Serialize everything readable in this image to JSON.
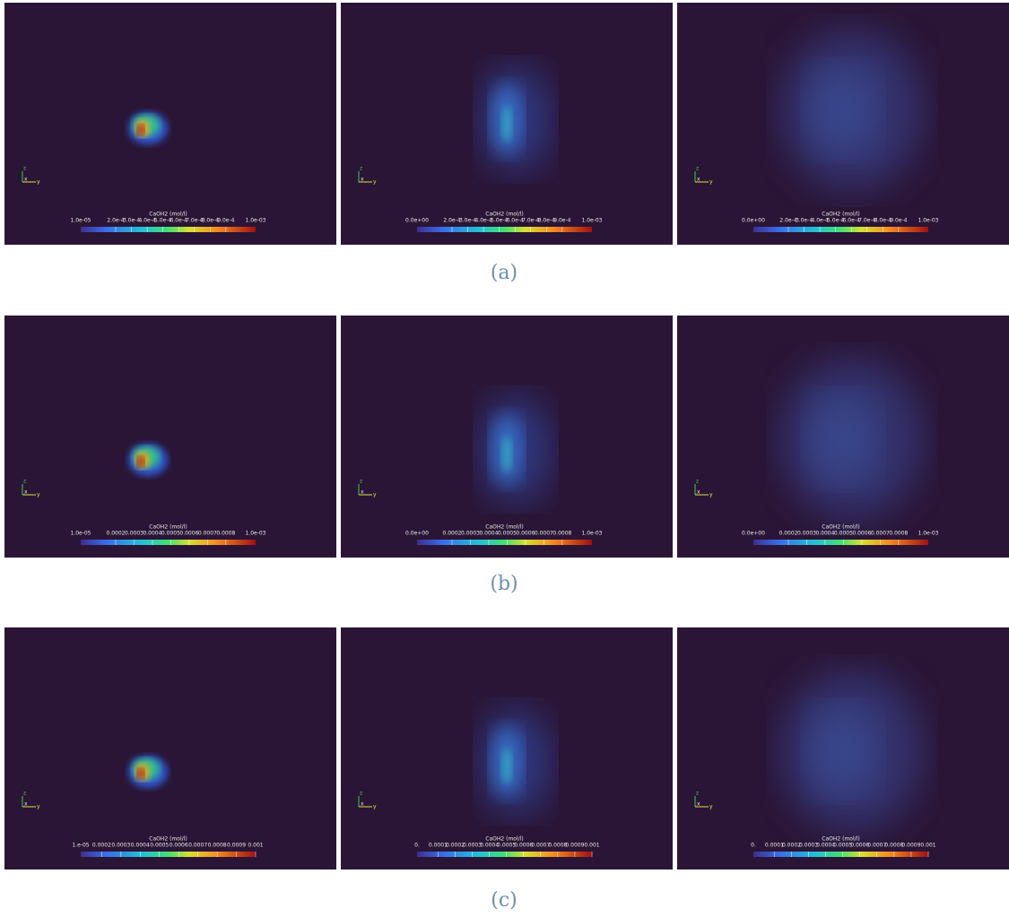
{
  "rows": [
    {
      "caption": "(a)",
      "panels": [
        {
          "colorbar_title": "CaOH2 (mol/l)",
          "min_label": "1.0e-05",
          "tick_labels": [
            "2.0e-4",
            "3.0e-4",
            "4.0e-4",
            "5.0e-4",
            "6.0e-4",
            "7.0e-4",
            "8.0e-4",
            "9.0e-4"
          ],
          "max_label": "1.0e-03",
          "axes": [
            "z",
            "x",
            "y"
          ]
        },
        {
          "colorbar_title": "CaOH2 (mol/l)",
          "min_label": "0.0e+00",
          "tick_labels": [
            "2.0e-4",
            "3.0e-4",
            "4.0e-4",
            "5.0e-4",
            "6.0e-4",
            "7.0e-4",
            "8.0e-4",
            "9.0e-4"
          ],
          "max_label": "1.0e-03",
          "axes": [
            "z",
            "x",
            "y"
          ]
        },
        {
          "colorbar_title": "CaOH2 (mol/l)",
          "min_label": "0.0e+00",
          "tick_labels": [
            "2.0e-4",
            "3.0e-4",
            "4.0e-4",
            "5.0e-4",
            "6.0e-4",
            "7.0e-4",
            "8.0e-4",
            "9.0e-4"
          ],
          "max_label": "1.0e-03",
          "axes": [
            "z",
            "x",
            "y"
          ]
        }
      ]
    },
    {
      "caption": "(b)",
      "panels": [
        {
          "colorbar_title": "CaOH2 (mol/l)",
          "min_label": "1.0e-05",
          "tick_labels": [
            "0.0002",
            "0.0003",
            "0.0004",
            "0.0005",
            "0.0006",
            "0.0007",
            "0.0008"
          ],
          "max_label": "1.0e-03",
          "axes": [
            "z",
            "x",
            "y"
          ]
        },
        {
          "colorbar_title": "CaOH2 (mol/l)",
          "min_label": "0.0e+00",
          "tick_labels": [
            "0.0002",
            "0.0003",
            "0.0004",
            "0.0005",
            "0.0006",
            "0.0007",
            "0.0008"
          ],
          "max_label": "1.0e-03",
          "axes": [
            "z",
            "x",
            "y"
          ]
        },
        {
          "colorbar_title": "CaOH2 (mol/l)",
          "min_label": "0.0e+00",
          "tick_labels": [
            "0.0002",
            "0.0003",
            "0.0004",
            "0.0005",
            "0.0006",
            "0.0007",
            "0.0008"
          ],
          "max_label": "1.0e-03",
          "axes": [
            "z",
            "x",
            "y"
          ]
        }
      ]
    },
    {
      "caption": "(c)",
      "panels": [
        {
          "colorbar_title": "CaOH2 (mol/l)",
          "min_label": "1.e-05",
          "tick_labels": [
            "0.0002",
            "0.0003",
            "0.0004",
            "0.0005",
            "0.0006",
            "0.0007",
            "0.0008",
            "0.0009",
            "0.001"
          ],
          "max_label": "",
          "axes": [
            "z",
            "x",
            "y"
          ]
        },
        {
          "colorbar_title": "CaOH2 (mol/l)",
          "min_label": "0.",
          "tick_labels": [
            "0.0001",
            "0.0002",
            "0.0003",
            "0.0004",
            "0.0005",
            "0.0006",
            "0.0007",
            "0.0008",
            "0.0009",
            "0.001"
          ],
          "max_label": "",
          "axes": [
            "z",
            "x",
            "y"
          ]
        },
        {
          "colorbar_title": "CaOH2 (mol/l)",
          "min_label": "0.",
          "tick_labels": [
            "0.0001",
            "0.0002",
            "0.0003",
            "0.0004",
            "0.0005",
            "0.0006",
            "0.0007",
            "0.0008",
            "0.0009",
            "0.001"
          ],
          "max_label": "",
          "axes": [
            "z",
            "x",
            "y"
          ]
        }
      ]
    }
  ]
}
